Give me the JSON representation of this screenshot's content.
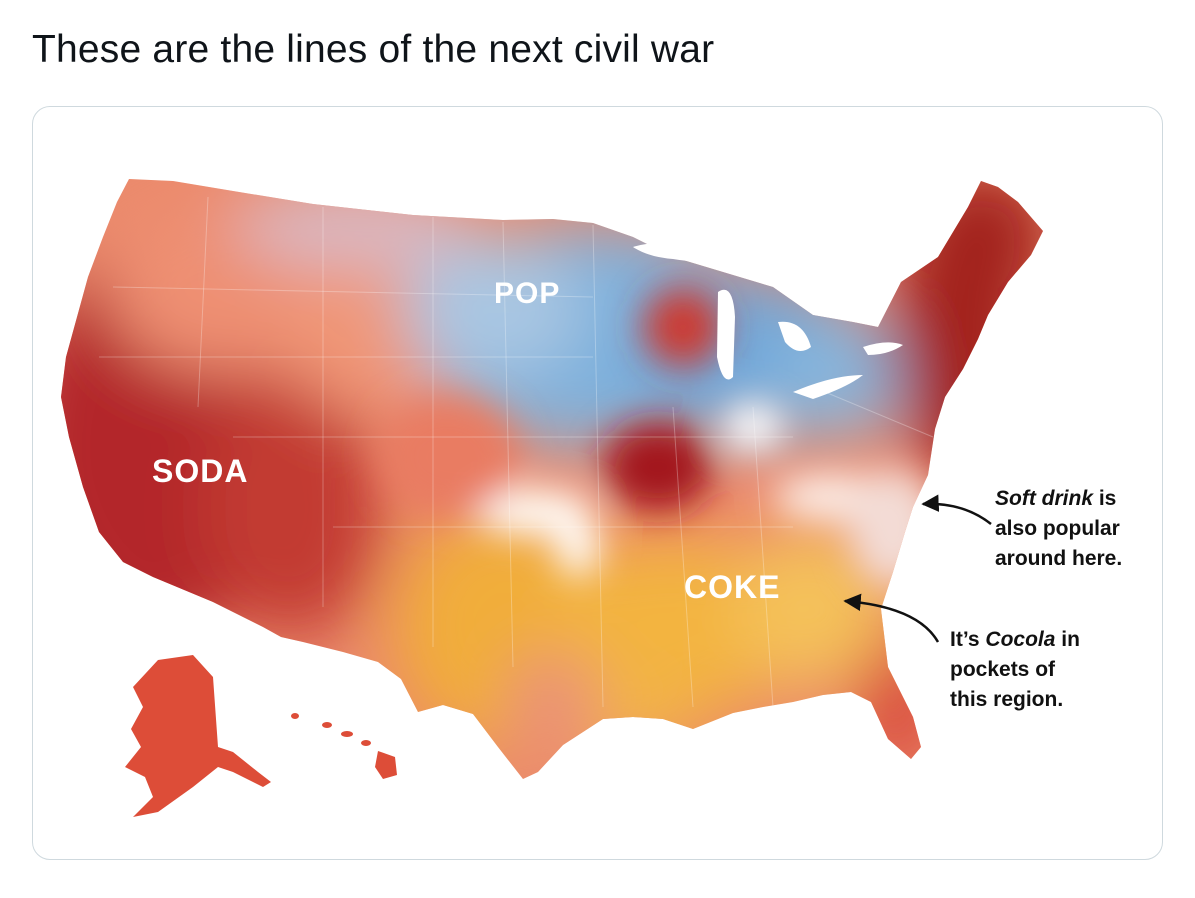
{
  "tweet": {
    "text": "These are the lines of the next civil war"
  },
  "map": {
    "regions": [
      {
        "label": "SODA",
        "color": "#b8302a"
      },
      {
        "label": "POP",
        "color": "#7fb2dc"
      },
      {
        "label": "COKE",
        "color": "#f2b13c"
      }
    ],
    "annotations": {
      "soft_drink": {
        "line1_italic": "Soft drink",
        "line1_rest": " is",
        "line2": "also popular",
        "line3": "around here."
      },
      "cocola": {
        "line1_start": "It’s ",
        "line1_italic": "Cocola",
        "line1_rest": " in",
        "line2": "pockets of",
        "line3": "this region."
      }
    },
    "colors": {
      "soda_dark": "#9e1f1f",
      "soda_light": "#ec8a6a",
      "pop": "#7fb2dc",
      "coke": "#f2b13c",
      "soft_drink_zone": "#f6e6e0"
    }
  }
}
